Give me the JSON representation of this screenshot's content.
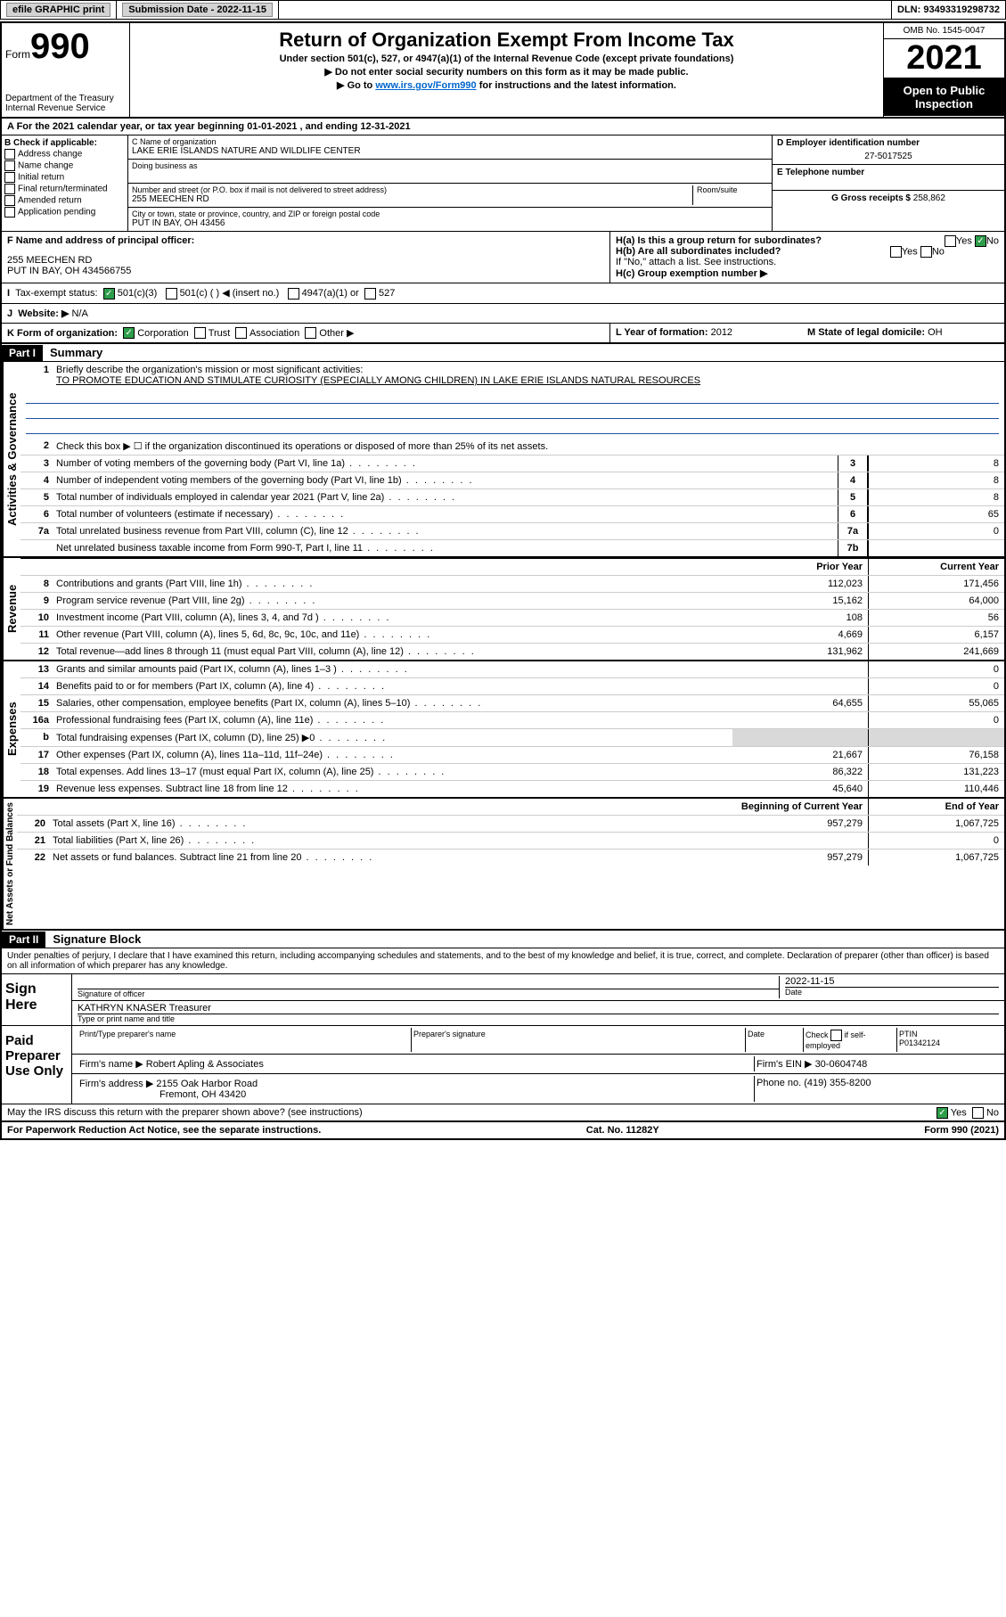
{
  "topbar": {
    "efile_label": "efile GRAPHIC print",
    "submission_label": "Submission Date - 2022-11-15",
    "dln_label": "DLN: 93493319298732"
  },
  "header": {
    "form_prefix": "Form",
    "form_number": "990",
    "dept": "Department of the Treasury",
    "irs": "Internal Revenue Service",
    "title": "Return of Organization Exempt From Income Tax",
    "subtitle1": "Under section 501(c), 527, or 4947(a)(1) of the Internal Revenue Code (except private foundations)",
    "subtitle2": "▶ Do not enter social security numbers on this form as it may be made public.",
    "subtitle3_pre": "▶ Go to ",
    "subtitle3_link": "www.irs.gov/Form990",
    "subtitle3_post": " for instructions and the latest information.",
    "omb": "OMB No. 1545-0047",
    "year": "2021",
    "open_badge1": "Open to Public",
    "open_badge2": "Inspection"
  },
  "row_a": "A For the 2021 calendar year, or tax year beginning 01-01-2021   , and ending 12-31-2021",
  "box_b": {
    "title": "B Check if applicable:",
    "items": [
      "Address change",
      "Name change",
      "Initial return",
      "Final return/terminated",
      "Amended return",
      "Application pending"
    ]
  },
  "box_c": {
    "name_lbl": "C Name of organization",
    "name_val": "LAKE ERIE ISLANDS NATURE AND WILDLIFE CENTER",
    "dba_lbl": "Doing business as",
    "dba_val": "",
    "street_lbl": "Number and street (or P.O. box if mail is not delivered to street address)",
    "room_lbl": "Room/suite",
    "street_val": "255 MEECHEN RD",
    "city_lbl": "City or town, state or province, country, and ZIP or foreign postal code",
    "city_val": "PUT IN BAY, OH  43456"
  },
  "box_de": {
    "d_lbl": "D Employer identification number",
    "d_val": "27-5017525",
    "e_lbl": "E Telephone number",
    "e_val": "",
    "g_lbl": "G Gross receipts $",
    "g_val": "258,862"
  },
  "box_f": {
    "lbl": "F Name and address of principal officer:",
    "line1": "255 MEECHEN RD",
    "line2": "PUT IN BAY, OH  434566755"
  },
  "box_h": {
    "a_lbl": "H(a)  Is this a group return for subordinates?",
    "b_lbl": "H(b)  Are all subordinates included?",
    "note": "If \"No,\" attach a list. See instructions.",
    "c_lbl": "H(c)  Group exemption number ▶",
    "yes": "Yes",
    "no": "No"
  },
  "row_i": {
    "lbl": "Tax-exempt status:",
    "opt1": "501(c)(3)",
    "opt2": "501(c) (   ) ◀ (insert no.)",
    "opt3": "4947(a)(1) or",
    "opt4": "527"
  },
  "row_j": {
    "lbl": "Website: ▶",
    "val": "N/A"
  },
  "row_k": {
    "lbl": "K Form of organization:",
    "opts": [
      "Corporation",
      "Trust",
      "Association",
      "Other ▶"
    ]
  },
  "row_lm": {
    "l_lbl": "L Year of formation:",
    "l_val": "2012",
    "m_lbl": "M State of legal domicile:",
    "m_val": "OH"
  },
  "part1": {
    "label": "Part I",
    "title": "Summary"
  },
  "mission": {
    "num": "1",
    "lbl": "Briefly describe the organization's mission or most significant activities:",
    "text": "TO PROMOTE EDUCATION AND STIMULATE CURIOSITY (ESPECIALLY AMONG CHILDREN) IN LAKE ERIE ISLANDS NATURAL RESOURCES"
  },
  "governance": {
    "vlabel": "Activities & Governance",
    "line2": "Check this box ▶ ☐  if the organization discontinued its operations or disposed of more than 25% of its net assets.",
    "lines": [
      {
        "n": "3",
        "d": "Number of voting members of the governing body (Part VI, line 1a)",
        "b": "3",
        "v": "8"
      },
      {
        "n": "4",
        "d": "Number of independent voting members of the governing body (Part VI, line 1b)",
        "b": "4",
        "v": "8"
      },
      {
        "n": "5",
        "d": "Total number of individuals employed in calendar year 2021 (Part V, line 2a)",
        "b": "5",
        "v": "8"
      },
      {
        "n": "6",
        "d": "Total number of volunteers (estimate if necessary)",
        "b": "6",
        "v": "65"
      },
      {
        "n": "7a",
        "d": "Total unrelated business revenue from Part VIII, column (C), line 12",
        "b": "7a",
        "v": "0"
      },
      {
        "n": "",
        "d": "Net unrelated business taxable income from Form 990-T, Part I, line 11",
        "b": "7b",
        "v": ""
      }
    ]
  },
  "twocol_header": {
    "prior": "Prior Year",
    "current": "Current Year"
  },
  "revenue": {
    "vlabel": "Revenue",
    "lines": [
      {
        "n": "8",
        "d": "Contributions and grants (Part VIII, line 1h)",
        "p": "112,023",
        "c": "171,456"
      },
      {
        "n": "9",
        "d": "Program service revenue (Part VIII, line 2g)",
        "p": "15,162",
        "c": "64,000"
      },
      {
        "n": "10",
        "d": "Investment income (Part VIII, column (A), lines 3, 4, and 7d )",
        "p": "108",
        "c": "56"
      },
      {
        "n": "11",
        "d": "Other revenue (Part VIII, column (A), lines 5, 6d, 8c, 9c, 10c, and 11e)",
        "p": "4,669",
        "c": "6,157"
      },
      {
        "n": "12",
        "d": "Total revenue—add lines 8 through 11 (must equal Part VIII, column (A), line 12)",
        "p": "131,962",
        "c": "241,669"
      }
    ]
  },
  "expenses": {
    "vlabel": "Expenses",
    "lines": [
      {
        "n": "13",
        "d": "Grants and similar amounts paid (Part IX, column (A), lines 1–3 )",
        "p": "",
        "c": "0"
      },
      {
        "n": "14",
        "d": "Benefits paid to or for members (Part IX, column (A), line 4)",
        "p": "",
        "c": "0"
      },
      {
        "n": "15",
        "d": "Salaries, other compensation, employee benefits (Part IX, column (A), lines 5–10)",
        "p": "64,655",
        "c": "55,065"
      },
      {
        "n": "16a",
        "d": "Professional fundraising fees (Part IX, column (A), line 11e)",
        "p": "",
        "c": "0"
      },
      {
        "n": "b",
        "d": "Total fundraising expenses (Part IX, column (D), line 25) ▶0",
        "p": "GRAY",
        "c": "GRAY"
      },
      {
        "n": "17",
        "d": "Other expenses (Part IX, column (A), lines 11a–11d, 11f–24e)",
        "p": "21,667",
        "c": "76,158"
      },
      {
        "n": "18",
        "d": "Total expenses. Add lines 13–17 (must equal Part IX, column (A), line 25)",
        "p": "86,322",
        "c": "131,223"
      },
      {
        "n": "19",
        "d": "Revenue less expenses. Subtract line 18 from line 12",
        "p": "45,640",
        "c": "110,446"
      }
    ]
  },
  "netassets": {
    "vlabel": "Net Assets or Fund Balances",
    "header": {
      "begin": "Beginning of Current Year",
      "end": "End of Year"
    },
    "lines": [
      {
        "n": "20",
        "d": "Total assets (Part X, line 16)",
        "p": "957,279",
        "c": "1,067,725"
      },
      {
        "n": "21",
        "d": "Total liabilities (Part X, line 26)",
        "p": "",
        "c": "0"
      },
      {
        "n": "22",
        "d": "Net assets or fund balances. Subtract line 21 from line 20",
        "p": "957,279",
        "c": "1,067,725"
      }
    ]
  },
  "part2": {
    "label": "Part II",
    "title": "Signature Block",
    "jurat": "Under penalties of perjury, I declare that I have examined this return, including accompanying schedules and statements, and to the best of my knowledge and belief, it is true, correct, and complete. Declaration of preparer (other than officer) is based on all information of which preparer has any knowledge."
  },
  "sign": {
    "label": "Sign Here",
    "sig_lbl": "Signature of officer",
    "date_lbl": "Date",
    "date_val": "2022-11-15",
    "name_val": "KATHRYN KNASER  Treasurer",
    "name_lbl": "Type or print name and title"
  },
  "preparer": {
    "label": "Paid Preparer Use Only",
    "h1": "Print/Type preparer's name",
    "h2": "Preparer's signature",
    "h3": "Date",
    "h4a": "Check",
    "h4b": "if self-employed",
    "h5": "PTIN",
    "ptin": "P01342124",
    "firm_name_lbl": "Firm's name     ▶",
    "firm_name": "Robert Apling & Associates",
    "firm_ein_lbl": "Firm's EIN ▶",
    "firm_ein": "30-0604748",
    "firm_addr_lbl": "Firm's address ▶",
    "firm_addr1": "2155 Oak Harbor Road",
    "firm_addr2": "Fremont, OH  43420",
    "phone_lbl": "Phone no.",
    "phone": "(419) 355-8200"
  },
  "discuss": {
    "text": "May the IRS discuss this return with the preparer shown above? (see instructions)",
    "yes": "Yes",
    "no": "No"
  },
  "footer": {
    "left": "For Paperwork Reduction Act Notice, see the separate instructions.",
    "mid": "Cat. No. 11282Y",
    "right": "Form 990 (2021)"
  },
  "colors": {
    "black": "#000000",
    "gray_btn": "#d3d3d3",
    "gray_fill": "#d9d9d9",
    "link": "#0066cc",
    "green": "#2e9e4a",
    "underline_blue": "#2050a0"
  }
}
